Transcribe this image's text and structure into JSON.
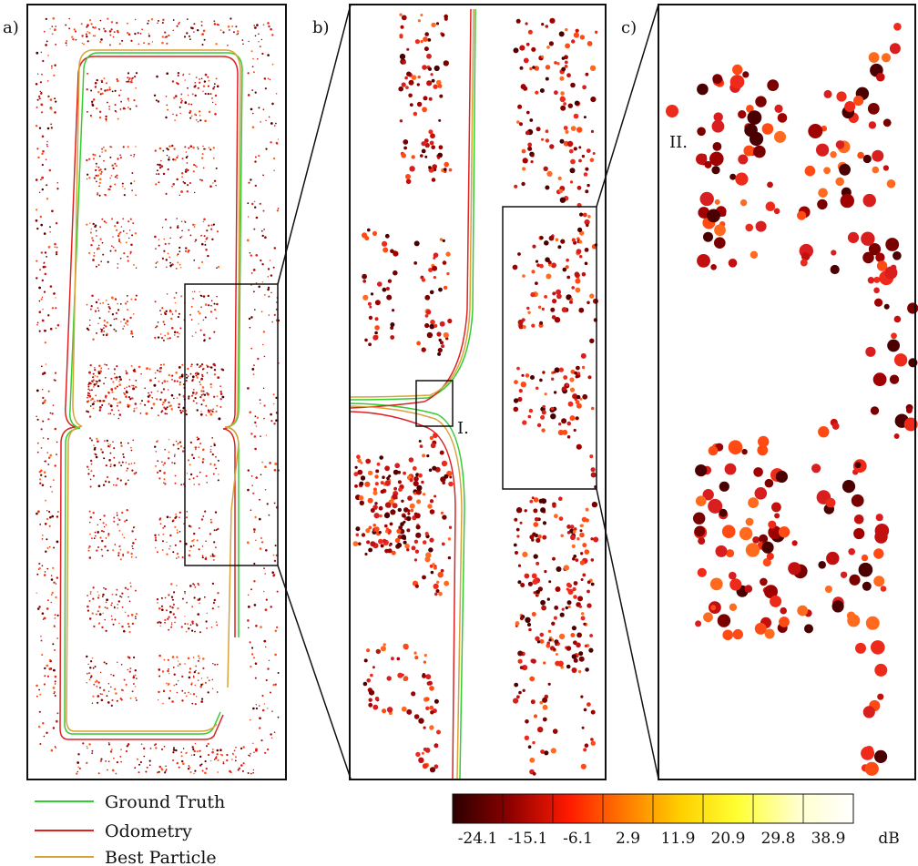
{
  "panels": {
    "a": {
      "label": "a)"
    },
    "b": {
      "label": "b)",
      "annotation": "I."
    },
    "c": {
      "label": "c)",
      "annotation": "II."
    }
  },
  "legend": {
    "items": [
      {
        "label": "Ground Truth",
        "color": "#33cc33"
      },
      {
        "label": "Odometry",
        "color": "#dd2222"
      },
      {
        "label": "Best Particle",
        "color": "#d9a23a"
      }
    ]
  },
  "colorbar": {
    "ticks": [
      "-24.1",
      "-15.1",
      "-6.1",
      "2.9",
      "11.9",
      "20.9",
      "29.8",
      "38.9"
    ],
    "unit": "dB",
    "colors": [
      "#2b0000",
      "#8b0000",
      "#ff1a00",
      "#ff7a00",
      "#ffd000",
      "#ffff33",
      "#ffffcc",
      "#ffffff"
    ]
  },
  "colors": {
    "ground_truth": "#33cc33",
    "odometry": "#dd2222",
    "best_particle": "#d9a23a",
    "points": [
      "#4a0000",
      "#7a0000",
      "#a00000",
      "#c21010",
      "#d81e1e",
      "#ee2b1b",
      "#ff4a14",
      "#ff6a1f"
    ]
  }
}
